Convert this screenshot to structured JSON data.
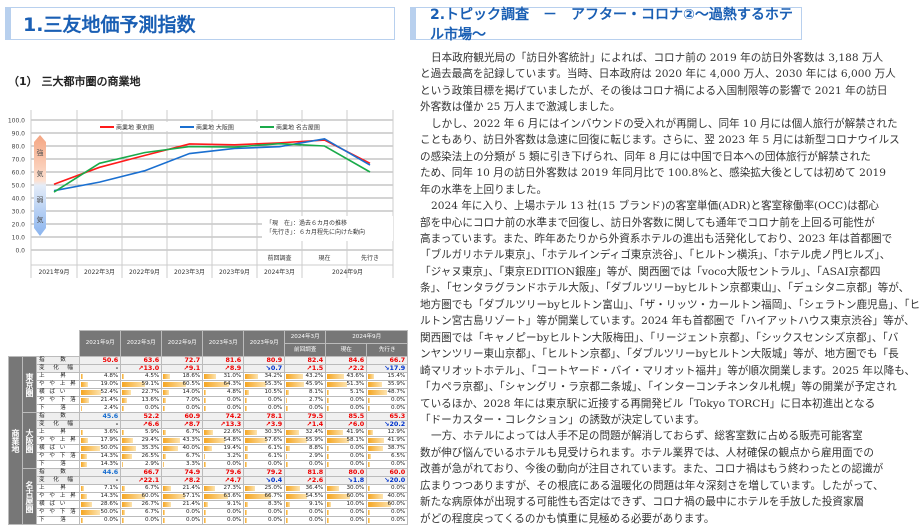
{
  "left": {
    "title": "1.三友地価予測指数",
    "subtitle": "（1） 三大都市圏の商業地"
  },
  "chart_data": {
    "type": "line",
    "categories": [
      "2021年9月",
      "2022年3月",
      "2022年9月",
      "2023年3月",
      "2023年9月",
      "2024年3月",
      "現在",
      "先行き"
    ],
    "category_top_labels": [
      "",
      "",
      "",
      "",
      "",
      "前回調査",
      "現在",
      "先行き"
    ],
    "category_dates": [
      "2021年9月",
      "2022年3月",
      "2022年9月",
      "2023年3月",
      "2023年9月",
      "2024年3月",
      "2024年9月"
    ],
    "series": [
      {
        "name": "商業地 東京圏",
        "color": "#ff1a1a",
        "values": [
          50.6,
          63.6,
          72.7,
          81.6,
          80.9,
          82.4,
          84.6,
          66.7
        ]
      },
      {
        "name": "商業地 大阪圏",
        "color": "#1a6fd0",
        "values": [
          45.6,
          52.2,
          60.9,
          74.2,
          78.1,
          79.5,
          85.5,
          65.3
        ]
      },
      {
        "name": "商業地 名古屋圏",
        "color": "#1aaa4a",
        "values": [
          44.6,
          66.7,
          74.9,
          79.6,
          79.2,
          81.8,
          80.0,
          60.0
        ]
      }
    ],
    "ylim": [
      0,
      100
    ],
    "yticks": [
      "0.0",
      "10.0",
      "20.0",
      "30.0",
      "40.0",
      "50.0",
      "60.0",
      "70.0",
      "80.0",
      "90.0",
      "100.0"
    ],
    "grid": true,
    "legend": "top",
    "arrow_labels": {
      "strong": [
        "強",
        "気"
      ],
      "weak": [
        "弱",
        "気"
      ]
    },
    "notes": [
      "「現　在」：過去６カ月の推移",
      "「先行き」：６カ月程先に向けた動向"
    ]
  },
  "table": {
    "headers": [
      "2021年9月",
      "2022年3月",
      "2022年9月",
      "2023年3月",
      "2023年9月",
      "2024年3月",
      "2024年9月"
    ],
    "sub_headers": {
      "prev": "前回調査",
      "now": "現在",
      "future": "先行き"
    },
    "outer_label": "商業地",
    "row_labels": [
      "指　　数",
      "変　化　幅",
      "上　　昇",
      "や や 上 昇",
      "横 ば い",
      "や や 下 落",
      "下　　落"
    ],
    "regions": [
      {
        "name": "東京圏",
        "index": [
          "50.6",
          "63.6",
          "72.7",
          "81.6",
          "80.9",
          "82.4",
          "84.6",
          "66.7"
        ],
        "change": [
          "-",
          "↗13.0",
          "↗9.1",
          "↗8.9",
          "↘0.7",
          "↗1.5",
          "↗2.2",
          "↘17.9"
        ],
        "dist": [
          [
            "4.8%",
            "4.5%",
            "18.6%",
            "31.0%",
            "34.2%",
            "43.2%",
            "43.6%",
            "15.4%"
          ],
          [
            "19.0%",
            "59.1%",
            "60.5%",
            "64.3%",
            "55.3%",
            "45.9%",
            "51.3%",
            "35.9%"
          ],
          [
            "52.4%",
            "22.7%",
            "14.0%",
            "4.8%",
            "10.5%",
            "8.1%",
            "5.1%",
            "48.7%"
          ],
          [
            "21.4%",
            "13.6%",
            "7.0%",
            "0.0%",
            "0.0%",
            "2.7%",
            "0.0%",
            "0.0%"
          ],
          [
            "2.4%",
            "0.0%",
            "0.0%",
            "0.0%",
            "0.0%",
            "0.0%",
            "0.0%",
            "0.0%"
          ]
        ]
      },
      {
        "name": "大阪圏",
        "index": [
          "45.6",
          "52.2",
          "60.9",
          "74.2",
          "78.1",
          "79.5",
          "85.5",
          "65.3"
        ],
        "change": [
          "-",
          "↗6.6",
          "↗8.7",
          "↗13.3",
          "↗3.9",
          "↗1.4",
          "↗6.0",
          "↘20.2"
        ],
        "dist": [
          [
            "3.6%",
            "5.9%",
            "6.7%",
            "22.6%",
            "30.3%",
            "32.4%",
            "41.9%",
            "12.9%"
          ],
          [
            "17.9%",
            "29.4%",
            "43.3%",
            "54.8%",
            "57.6%",
            "55.9%",
            "58.1%",
            "41.9%"
          ],
          [
            "50.0%",
            "35.3%",
            "40.0%",
            "19.4%",
            "6.1%",
            "8.8%",
            "0.0%",
            "38.7%"
          ],
          [
            "14.3%",
            "26.5%",
            "6.7%",
            "3.2%",
            "6.1%",
            "2.9%",
            "0.0%",
            "6.5%"
          ],
          [
            "14.3%",
            "2.9%",
            "3.3%",
            "0.0%",
            "0.0%",
            "0.0%",
            "0.0%",
            "0.0%"
          ]
        ]
      },
      {
        "name": "名古屋圏",
        "index": [
          "44.6",
          "66.7",
          "74.9",
          "79.6",
          "79.2",
          "81.8",
          "80.0",
          "60.0"
        ],
        "change": [
          "-",
          "↗22.1",
          "↗8.2",
          "↗4.7",
          "↘0.4",
          "↗2.6",
          "↘1.8",
          "↘20.0"
        ],
        "dist": [
          [
            "7.1%",
            "6.7%",
            "21.4%",
            "27.3%",
            "25.0%",
            "36.4%",
            "30.0%",
            "0.0%"
          ],
          [
            "14.3%",
            "60.0%",
            "57.1%",
            "63.6%",
            "66.7%",
            "54.5%",
            "60.0%",
            "40.0%"
          ],
          [
            "28.6%",
            "26.7%",
            "21.4%",
            "9.1%",
            "8.3%",
            "9.1%",
            "10.0%",
            "60.0%"
          ],
          [
            "50.0%",
            "6.7%",
            "0.0%",
            "0.0%",
            "0.0%",
            "0.0%",
            "0.0%",
            "0.0%"
          ],
          [
            "0.0%",
            "0.0%",
            "0.0%",
            "0.0%",
            "0.0%",
            "0.0%",
            "0.0%",
            "0.0%"
          ]
        ]
      }
    ]
  },
  "article": {
    "title": "2.トピック調査　－　アフター・コロナ②～過熱するホテル市場～",
    "paragraphs": [
      [
        "日本政府観光局の「訪日外客統計」によれば、コロナ前の 2019 年の訪日外客数は 3,188 万人",
        "と過去最高を記録しています。当時、日本政府は 2020 年に 4,000 万人、2030 年には 6,000 万人",
        "という政策目標を掲げていましたが、その後はコロナ禍による入国制限等の影響で 2021 年の訪日",
        "外客数は僅か 25 万人まで激減しました。"
      ],
      [
        "しかし、2022 年 6 月にはインバウンドの受入れが再開し、同年 10 月には個人旅行が解禁された",
        "こともあり、訪日外客数は急速に回復に転じます。さらに、翌 2023 年 5 月には新型コロナウイルス",
        "の感染法上の分類が 5 類に引き下げられ、同年 8 月には中国で日本への団体旅行が解禁された",
        "ため、同年 10 月の訪日外客数は 2019 年同月比で 100.8%と、感染拡大後としては初めて 2019",
        "年の水準を上回りました。"
      ],
      [
        "2024 年に入り、上場ホテル 13 社(15 ブランド)の客室単価(ADR)と客室稼働率(OCC)は都心",
        "部を中心にコロナ前の水準まで回復し、訪日外客数に関しても通年でコロナ前を上回る可能性が",
        "高まっています。また、昨年あたりから外資系ホテルの進出も活発化しており、2023 年は首都圏で",
        "「ブルガリホテル東京」、「ホテルインディゴ東京渋谷」、「ヒルトン横浜」、「ホテル虎ノ門ヒルズ」、",
        "「ジャヌ東京」、「東京EDITION銀座」等が、関西圏では「voco大阪セントラル」、「ASAI京都四",
        "条」、「センタラグランドホテル大阪」、「ダブルツリーbyヒルトン京都東山」、「デュシタニ京都」等が、",
        "地方圏でも「ダブルツリーbyヒルトン富山」、「ザ・リッツ・カールトン福岡」、「シェラトン鹿児島」、「ヒ",
        "ルトン宮古島リゾート」等が開業しています。2024 年も首都圏で「ハイアットハウス東京渋谷」等が、",
        "関西圏では「キャノピーbyヒルトン大阪梅田」、「リージェント京都」、「シックスセンシズ京都」、「バ",
        "ンヤンツリー東山京都」、「ヒルトン京都」、「ダブルツリーbyヒルトン大阪城」等が、地方圏でも「長",
        "崎マリオットホテル」、「コートヤード・バイ・マリオット福井」等が順次開業します。2025 年以降も、",
        "「カペラ京都」、「シャングリ・ラ京都二条城」、「インターコンチネンタル札幌」等の開業が予定され",
        "ているほか、2028 年には東京駅に近接する再開発ビル「Tokyo TORCH」に日本初進出となる",
        "「ドーカスター・コレクション」の誘致が決定しています。"
      ],
      [
        "一方、ホテルによっては人手不足の問題が解消しておらず、総客室数に占める販売可能客室",
        "数が伸び悩んでいるホテルも見受けられます。ホテル業界では、人材確保の観点から雇用面での",
        "改善が急がれており、今後の動向が注目されています。また、コロナ禍はもう終わったとの認識が",
        "広まりつつありますが、その根底にある温暖化の問題は年々深刻さを増しています。したがって、",
        "新たな病原体が出現する可能性も否定はできず、コロナ禍の最中にホテルを手放した投資家層",
        "がどの程度戻ってくるのかも慎重に見極める必要があります。"
      ]
    ]
  }
}
